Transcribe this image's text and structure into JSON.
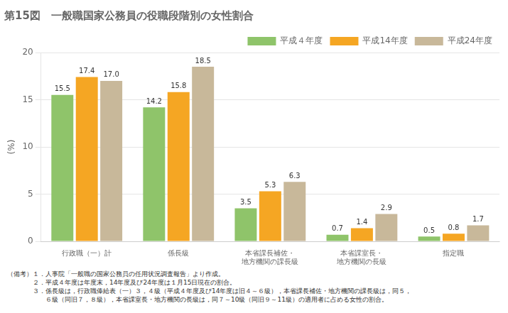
{
  "chart_data": {
    "type": "bar",
    "title": "第15図　一般職国家公務員の役職段階別の女性割合",
    "categories": [
      "行政職（一）計",
      "係長級",
      "本省課長補佐・\n地方機関の課長級",
      "本省課室長・\n地方機関の長級",
      "指定職"
    ],
    "series": [
      {
        "name": "平成４年度",
        "color": "#8fc46a",
        "values": [
          15.5,
          14.2,
          3.5,
          0.7,
          0.5
        ],
        "value_labels": [
          "15.5",
          "14.2",
          "3.5",
          "0.7",
          "0.5"
        ]
      },
      {
        "name": "平成14年度",
        "color": "#f5a623",
        "values": [
          17.4,
          15.8,
          5.3,
          1.4,
          0.8
        ],
        "value_labels": [
          "17.4",
          "15.8",
          "5.3",
          "1.4",
          "0.8"
        ]
      },
      {
        "name": "平成24年度",
        "color": "#c8b89a",
        "values": [
          17.0,
          18.5,
          6.3,
          2.9,
          1.7
        ],
        "value_labels": [
          "17.0",
          "18.5",
          "6.3",
          "2.9",
          "1.7"
        ]
      }
    ],
    "ylabel": "(%)",
    "ylim": [
      0,
      20
    ],
    "yticks": [
      0,
      5,
      10,
      15,
      20
    ],
    "grid": true,
    "legend": "upper right",
    "data_labels": true,
    "annotations": [
      "（備考）１．人事院「一般職の国家公務員の任用状況調査報告」より作成。",
      "　　　　２．平成４年度は年度末，14年度及び24年度は１月15日現在の割合。",
      "　　　　３．係長級は，行政職俸給表（一）３，４級（平成４年度及び14年度は旧４～６級），本省課長補佐・地方機関の課長級は，同５，",
      "　　　　　　６級（同旧７，８級），本省課室長・地方機関の長級は，同７～10級（同旧９～11級）の適用者に占める女性の割合。"
    ]
  }
}
